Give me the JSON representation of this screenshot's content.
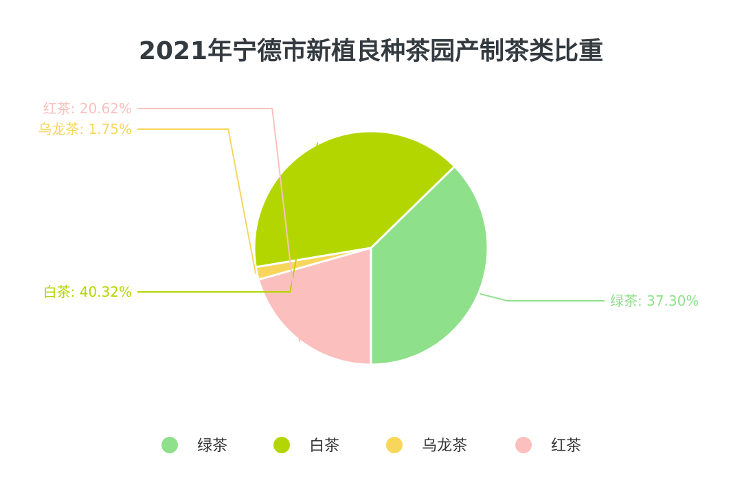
{
  "chart_data": {
    "type": "pie",
    "title": "2021年宁德市新植良种茶园产制茶类比重",
    "slices": [
      {
        "name": "绿茶",
        "value": 37.3,
        "label": "绿茶: 37.30%",
        "color": "#8fe08a"
      },
      {
        "name": "白茶",
        "value": 40.32,
        "label": "白茶: 40.32%",
        "color": "#b3d600"
      },
      {
        "name": "乌龙茶",
        "value": 1.75,
        "label": "乌龙茶: 1.75%",
        "color": "#f8d65c"
      },
      {
        "name": "红茶",
        "value": 20.62,
        "label": "红茶: 20.62%",
        "color": "#fbc0bd"
      }
    ],
    "legend": {
      "position": "bottom",
      "items": [
        "绿茶",
        "白茶",
        "乌龙茶",
        "红茶"
      ]
    }
  }
}
